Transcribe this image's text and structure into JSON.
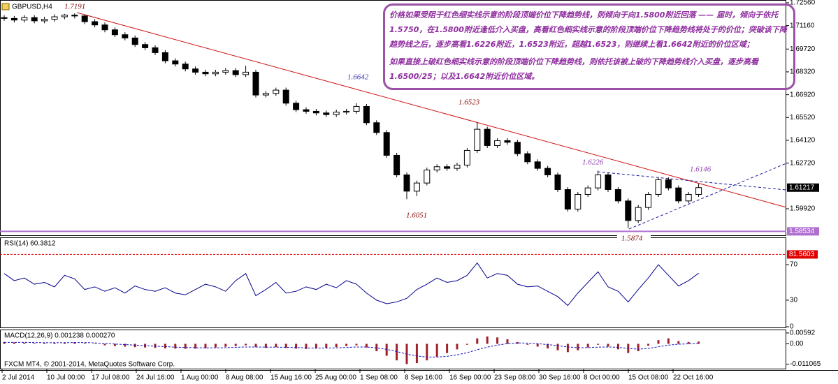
{
  "window_title": "GBPUSD,H4",
  "annotation": {
    "paragraphs": [
      "价格如果受阻于红色细实线示意的阶段顶端价位下降趋势线，则倾向于向1.5800附近回落 —— 届时，倾向于依托1.5750，在1.5800附近逢低介入买盘，高看红色细实线示意的阶段顶端价位下降趋势线将处于的价位；突破该下降趋势线之后，逐步高看1.6226附近，1.6523附近，超越1.6523，则继续上看1.6642附近的价位区域；",
      "如果直接上破红色细实线示意的阶段顶端价位下降趋势线，则依托该被上破的下降趋势线介入买盘，逐步高看1.6500/25；以及1.6642附近价位区域。"
    ]
  },
  "price_notes": [
    "1.7191",
    "1.6642",
    "1.6523",
    "1.6051",
    "1.6226",
    "1.6146",
    "1.5874"
  ],
  "x_labels": [
    "2 Jul 2014",
    "10 Jul 00:00",
    "17 Jul 08:00",
    "24 Jul 16:00",
    "1 Aug 00:00",
    "8 Aug 08:00",
    "15 Aug 16:00",
    "25 Aug 00:00",
    "1 Sep 08:00",
    "8 Sep 16:00",
    "16 Sep 00:00",
    "23 Sep 08:00",
    "30 Sep 16:00",
    "8 Oct 00:00",
    "15 Oct 08:00",
    "22 Oct 16:00"
  ],
  "footer": "FXCM MT4, © 2001-2014, MetaQuotes Software Corp.",
  "chart_data": [
    {
      "type": "candlestick",
      "title": "GBPUSD,H4",
      "ohlc": [
        [
          1.7165,
          1.718,
          1.7145,
          1.716
        ],
        [
          1.716,
          1.7175,
          1.7135,
          1.715
        ],
        [
          1.715,
          1.718,
          1.7135,
          1.7165
        ],
        [
          1.7165,
          1.718,
          1.713,
          1.7145
        ],
        [
          1.7145,
          1.717,
          1.713,
          1.7155
        ],
        [
          1.7155,
          1.7185,
          1.714,
          1.717
        ],
        [
          1.717,
          1.7188,
          1.7155,
          1.718
        ],
        [
          1.718,
          1.7191,
          1.716,
          1.7175
        ],
        [
          1.7175,
          1.7185,
          1.7125,
          1.714
        ],
        [
          1.714,
          1.7155,
          1.7105,
          1.712
        ],
        [
          1.712,
          1.7135,
          1.7075,
          1.709
        ],
        [
          1.709,
          1.7105,
          1.7045,
          1.706
        ],
        [
          1.706,
          1.7075,
          1.7025,
          1.704
        ],
        [
          1.704,
          1.7055,
          1.6985,
          1.7
        ],
        [
          1.7,
          1.7015,
          1.6965,
          1.698
        ],
        [
          1.698,
          1.6995,
          1.6935,
          1.695
        ],
        [
          1.695,
          1.6965,
          1.6885,
          1.69
        ],
        [
          1.69,
          1.6915,
          1.6865,
          1.688
        ],
        [
          1.688,
          1.6895,
          1.6835,
          1.685
        ],
        [
          1.685,
          1.6865,
          1.6815,
          1.683
        ],
        [
          1.683,
          1.6845,
          1.6805,
          1.682
        ],
        [
          1.682,
          1.6845,
          1.6805,
          1.683
        ],
        [
          1.683,
          1.6855,
          1.6815,
          1.684
        ],
        [
          1.684,
          1.6855,
          1.68,
          1.6815
        ],
        [
          1.6815,
          1.687,
          1.68,
          1.683
        ],
        [
          1.683,
          1.6845,
          1.6675,
          1.669
        ],
        [
          1.669,
          1.6715,
          1.6675,
          1.67
        ],
        [
          1.67,
          1.6735,
          1.6685,
          1.672
        ],
        [
          1.672,
          1.6735,
          1.6625,
          1.664
        ],
        [
          1.664,
          1.6655,
          1.6585,
          1.66
        ],
        [
          1.66,
          1.6615,
          1.6575,
          1.659
        ],
        [
          1.659,
          1.6605,
          1.6565,
          1.658
        ],
        [
          1.658,
          1.6595,
          1.6555,
          1.657
        ],
        [
          1.657,
          1.66,
          1.6555,
          1.6585
        ],
        [
          1.6585,
          1.6605,
          1.657,
          1.659
        ],
        [
          1.659,
          1.664,
          1.6575,
          1.662
        ],
        [
          1.662,
          1.6635,
          1.6505,
          1.652
        ],
        [
          1.652,
          1.6535,
          1.6445,
          1.646
        ],
        [
          1.646,
          1.6475,
          1.6305,
          1.632
        ],
        [
          1.632,
          1.6335,
          1.6185,
          1.62
        ],
        [
          1.62,
          1.6215,
          1.6051,
          1.61
        ],
        [
          1.61,
          1.6165,
          1.607,
          1.615
        ],
        [
          1.615,
          1.6245,
          1.6135,
          1.623
        ],
        [
          1.623,
          1.6265,
          1.6215,
          1.625
        ],
        [
          1.625,
          1.6265,
          1.6225,
          1.624
        ],
        [
          1.624,
          1.6275,
          1.6225,
          1.626
        ],
        [
          1.626,
          1.6365,
          1.6245,
          1.635
        ],
        [
          1.635,
          1.6523,
          1.6335,
          1.648
        ],
        [
          1.648,
          1.6495,
          1.6365,
          1.638
        ],
        [
          1.638,
          1.6425,
          1.6365,
          1.641
        ],
        [
          1.641,
          1.6425,
          1.6385,
          1.64
        ],
        [
          1.64,
          1.6415,
          1.6315,
          1.633
        ],
        [
          1.633,
          1.6345,
          1.6265,
          1.628
        ],
        [
          1.628,
          1.6295,
          1.6225,
          1.624
        ],
        [
          1.624,
          1.6255,
          1.6185,
          1.62
        ],
        [
          1.62,
          1.6215,
          1.6095,
          1.611
        ],
        [
          1.611,
          1.6125,
          1.5975,
          1.599
        ],
        [
          1.599,
          1.6095,
          1.5975,
          1.608
        ],
        [
          1.608,
          1.6135,
          1.6065,
          1.612
        ],
        [
          1.612,
          1.6226,
          1.6105,
          1.62
        ],
        [
          1.62,
          1.6215,
          1.6095,
          1.611
        ],
        [
          1.611,
          1.6125,
          1.6025,
          1.604
        ],
        [
          1.604,
          1.6055,
          1.5874,
          1.592
        ],
        [
          1.592,
          1.6015,
          1.5905,
          1.6
        ],
        [
          1.6,
          1.6095,
          1.5985,
          1.608
        ],
        [
          1.608,
          1.6185,
          1.6065,
          1.617
        ],
        [
          1.617,
          1.6185,
          1.6105,
          1.612
        ],
        [
          1.612,
          1.6135,
          1.6025,
          1.604
        ],
        [
          1.604,
          1.6095,
          1.6025,
          1.608
        ],
        [
          1.608,
          1.6146,
          1.6065,
          1.61217
        ]
      ],
      "up_color": "#ffffff",
      "down_color": "#000000",
      "ylim": [
        1.5825,
        1.7273
      ],
      "yticks": [
        {
          "value": 1.7256,
          "label": "1.72560"
        },
        {
          "value": 1.7116,
          "label": "1.71160"
        },
        {
          "value": 1.6972,
          "label": "1.69720"
        },
        {
          "value": 1.6832,
          "label": "1.68320"
        },
        {
          "value": 1.6692,
          "label": "1.66920"
        },
        {
          "value": 1.6552,
          "label": "1.65520"
        },
        {
          "value": 1.6412,
          "label": "1.64120"
        },
        {
          "value": 1.6272,
          "label": "1.62720"
        },
        {
          "value": 1.5992,
          "label": "1.59920"
        }
      ],
      "current_price": {
        "value": 1.61217,
        "label": "1.61217"
      },
      "level": {
        "value": 1.58534,
        "label": "1.58534"
      },
      "level_color": "#b070d0"
    },
    {
      "type": "line",
      "title": "RSI(14) 60.3812",
      "color": "#00008b",
      "values": [
        60,
        52,
        55,
        48,
        50,
        45,
        58,
        54,
        42,
        45,
        40,
        44,
        38,
        46,
        42,
        40,
        44,
        38,
        36,
        42,
        48,
        45,
        40,
        52,
        60,
        35,
        42,
        50,
        38,
        40,
        45,
        42,
        48,
        44,
        52,
        48,
        38,
        30,
        26,
        28,
        32,
        42,
        48,
        55,
        50,
        52,
        58,
        72,
        55,
        60,
        58,
        48,
        45,
        46,
        40,
        34,
        24,
        38,
        50,
        62,
        45,
        40,
        28,
        42,
        55,
        70,
        58,
        46,
        52,
        60.3812
      ],
      "ylim": [
        0,
        100
      ],
      "yticks": [
        0,
        30,
        70
      ],
      "level": 81.5603,
      "level_color": "#e00000"
    },
    {
      "type": "macd",
      "title": "MACD(12,26,9) 0.001238 0.000270",
      "color": "#a0202a",
      "signal_color": "#1010c0",
      "values": [
        0.001,
        0.0008,
        0.0006,
        0.0004,
        0.0005,
        0.0006,
        0.0008,
        0.0009,
        0.0004,
        -0.0002,
        -0.0008,
        -0.0012,
        -0.0015,
        -0.0018,
        -0.002,
        -0.0022,
        -0.0025,
        -0.0026,
        -0.0027,
        -0.0026,
        -0.0024,
        -0.002,
        -0.0016,
        -0.0012,
        -0.0008,
        -0.0018,
        -0.0022,
        -0.0018,
        -0.0022,
        -0.0026,
        -0.0028,
        -0.0026,
        -0.0022,
        -0.0018,
        -0.0012,
        -0.0008,
        -0.002,
        -0.004,
        -0.0065,
        -0.009,
        -0.011,
        -0.0105,
        -0.009,
        -0.007,
        -0.005,
        -0.003,
        -0.0005,
        0.003,
        0.004,
        0.0035,
        0.0025,
        0.001,
        -0.0005,
        -0.0015,
        -0.0025,
        -0.0035,
        -0.0045,
        -0.0035,
        -0.002,
        -0.0005,
        -0.0015,
        -0.003,
        -0.005,
        -0.004,
        -0.001,
        0.002,
        0.003,
        0.0015,
        0.001,
        0.001238
      ],
      "signal": [
        0.0008,
        0.0008,
        0.0008,
        0.0007,
        0.0006,
        0.0006,
        0.0006,
        0.0007,
        0.0007,
        0.0005,
        0.0002,
        -0.0001,
        -0.0004,
        -0.0007,
        -0.001,
        -0.0013,
        -0.0015,
        -0.0018,
        -0.002,
        -0.0021,
        -0.0022,
        -0.0022,
        -0.0021,
        -0.0019,
        -0.0017,
        -0.0017,
        -0.0018,
        -0.0018,
        -0.0019,
        -0.002,
        -0.0022,
        -0.0023,
        -0.0023,
        -0.0022,
        -0.002,
        -0.0017,
        -0.0017,
        -0.0022,
        -0.003,
        -0.0042,
        -0.0056,
        -0.0066,
        -0.0072,
        -0.0072,
        -0.0068,
        -0.006,
        -0.0048,
        -0.0032,
        -0.0018,
        -0.0007,
        0.0001,
        0.0005,
        0.0004,
        0.0001,
        -0.0004,
        -0.001,
        -0.0017,
        -0.0021,
        -0.0021,
        -0.0018,
        -0.0017,
        -0.0019,
        -0.0025,
        -0.0029,
        -0.0025,
        -0.0016,
        -0.0007,
        -0.0002,
        0,
        0.00027
      ],
      "ylim": [
        -0.0135,
        0.0074
      ],
      "yticks": [
        0.00592,
        {
          "value": 0,
          "label": "0.00"
        },
        -0.011065
      ]
    }
  ]
}
